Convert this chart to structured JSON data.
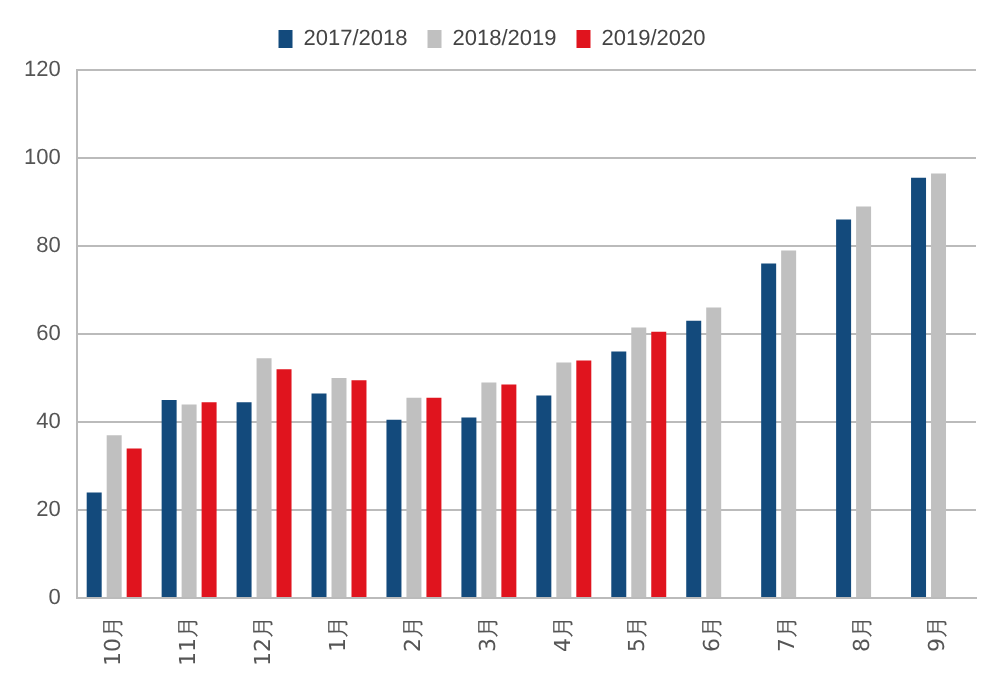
{
  "chart_data": {
    "type": "bar",
    "categories": [
      "10月",
      "11月",
      "12月",
      "1月",
      "2月",
      "3月",
      "4月",
      "5月",
      "6月",
      "7月",
      "8月",
      "9月"
    ],
    "series": [
      {
        "name": "2017/2018",
        "color": "#134a7c",
        "values": [
          24,
          45,
          44.5,
          46.5,
          40.5,
          41,
          46,
          56,
          63,
          76,
          86,
          95.5
        ]
      },
      {
        "name": "2018/2019",
        "color": "#c0c0c0",
        "values": [
          37,
          44,
          54.5,
          50,
          45.5,
          49,
          53.5,
          61.5,
          66,
          79,
          89,
          96.5
        ]
      },
      {
        "name": "2019/2020",
        "color": "#e0141e",
        "values": [
          34,
          44.5,
          52,
          49.5,
          45.5,
          48.5,
          54,
          60.5,
          null,
          null,
          null,
          null
        ]
      }
    ],
    "ylim": [
      0,
      120
    ],
    "yticks": [
      0,
      20,
      40,
      60,
      80,
      100,
      120
    ],
    "grid": "y",
    "legend": "top"
  }
}
